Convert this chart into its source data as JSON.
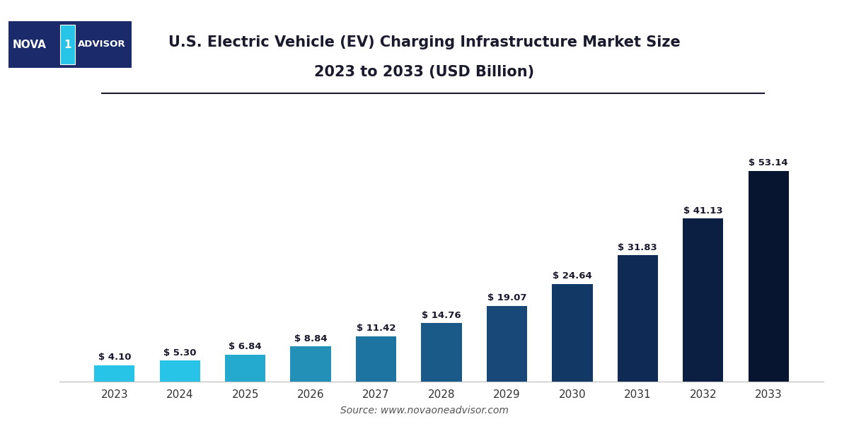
{
  "years": [
    "2023",
    "2024",
    "2025",
    "2026",
    "2027",
    "2028",
    "2029",
    "2030",
    "2031",
    "2032",
    "2033"
  ],
  "values": [
    4.1,
    5.3,
    6.84,
    8.84,
    11.42,
    14.76,
    19.07,
    24.64,
    31.83,
    41.13,
    53.14
  ],
  "bar_colors": [
    "#27C4E8",
    "#27C4E8",
    "#25AACF",
    "#2390B8",
    "#1E74A0",
    "#1A5A88",
    "#174878",
    "#123865",
    "#0F2B55",
    "#0B1F42",
    "#081530"
  ],
  "title_line1": "U.S. Electric Vehicle (EV) Charging Infrastructure Market Size",
  "title_line2": "2023 to 2033 (USD Billion)",
  "source_text": "Source: www.novaoneadvisor.com",
  "bg_color": "#FFFFFF",
  "plot_bg_color": "#FFFFFF",
  "title_color": "#1A1A2E",
  "label_color": "#1A1A2E",
  "xlabel_color": "#333333",
  "grid_color": "#CCCCCC",
  "logo_bg": "#1B2A6B",
  "logo_accent": "#27C4E8",
  "deco_line_color": "#1A1A2E",
  "ylim": [
    0,
    62
  ],
  "figsize": [
    12.0,
    6.0
  ],
  "dpi": 100
}
